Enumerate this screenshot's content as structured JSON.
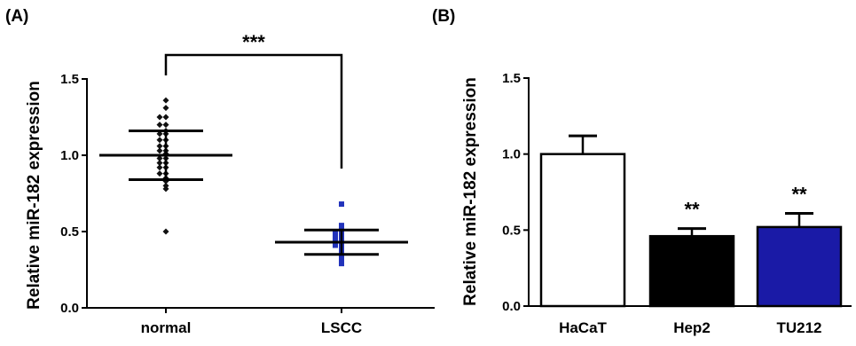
{
  "chart_data": [
    {
      "panel": "(A)",
      "type": "scatter",
      "ylabel": "Relative  miR-182 expression",
      "ylim": [
        0,
        1.5
      ],
      "yticks": [
        "0.0",
        "0.5",
        "1.0",
        "1.5"
      ],
      "categories": [
        "normal",
        "LSCC"
      ],
      "series": [
        {
          "category": "normal",
          "color": "#111111",
          "marker": "diamond",
          "mean": 1.0,
          "sd": 0.16,
          "points": [
            1.36,
            1.31,
            1.25,
            1.25,
            1.2,
            1.2,
            1.16,
            1.14,
            1.14,
            1.1,
            1.1,
            1.06,
            1.06,
            1.03,
            1.03,
            1.01,
            0.98,
            0.98,
            0.95,
            0.95,
            0.92,
            0.92,
            0.88,
            0.88,
            0.85,
            0.83,
            0.8,
            0.78,
            0.5
          ]
        },
        {
          "category": "LSCC",
          "color": "#2233bb",
          "marker": "square",
          "mean": 0.43,
          "sd": 0.08,
          "points": [
            0.68,
            0.54,
            0.52,
            0.5,
            0.5,
            0.48,
            0.48,
            0.46,
            0.46,
            0.45,
            0.45,
            0.44,
            0.44,
            0.43,
            0.43,
            0.42,
            0.42,
            0.41,
            0.41,
            0.4,
            0.39,
            0.38,
            0.36,
            0.35,
            0.34,
            0.32,
            0.3,
            0.29
          ]
        }
      ],
      "annotation": "***"
    },
    {
      "panel": "(B)",
      "type": "bar",
      "ylabel": "Relative  miR-182 expression",
      "ylim": [
        0,
        1.5
      ],
      "yticks": [
        "0.0",
        "0.5",
        "1.0",
        "1.5"
      ],
      "categories": [
        "HaCaT",
        "Hep2",
        "TU212"
      ],
      "values": [
        1.0,
        0.46,
        0.52
      ],
      "errors": [
        0.12,
        0.05,
        0.09
      ],
      "colors": [
        "#ffffff",
        "#000000",
        "#1a1aa6"
      ],
      "significance": [
        "",
        "**",
        "**"
      ]
    }
  ]
}
